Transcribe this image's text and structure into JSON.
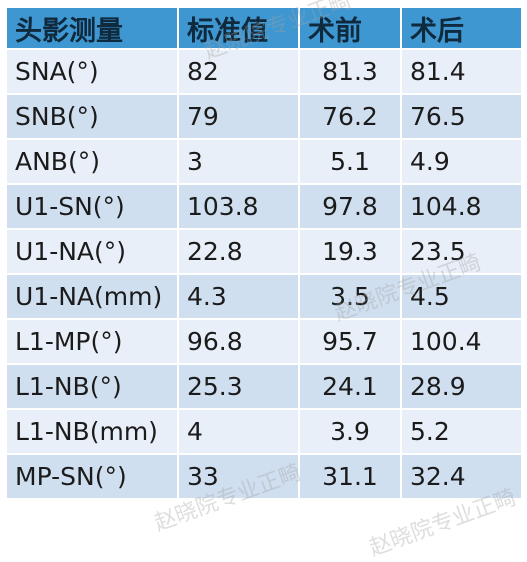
{
  "table": {
    "headers": [
      "头影测量",
      "标准值",
      "术前",
      "术后"
    ],
    "rows": [
      [
        "SNA(°)",
        "82",
        "81.3",
        "81.4"
      ],
      [
        "SNB(°)",
        "79",
        "76.2",
        "76.5"
      ],
      [
        "ANB(°)",
        "3",
        "5.1",
        "4.9"
      ],
      [
        "U1-SN(°)",
        "103.8",
        "97.8",
        "104.8"
      ],
      [
        "U1-NA(°)",
        "22.8",
        "19.3",
        "23.5"
      ],
      [
        "U1-NA(mm)",
        "4.3",
        "3.5",
        "4.5"
      ],
      [
        "L1-MP(°)",
        "96.8",
        "95.7",
        "100.4"
      ],
      [
        "L1-NB(°)",
        "25.3",
        "24.1",
        "28.9"
      ],
      [
        "L1-NB(mm)",
        "4",
        "3.9",
        "5.2"
      ],
      [
        "MP-SN(°)",
        "33",
        "31.1",
        "32.4"
      ]
    ]
  },
  "watermark": "赵晓院专业正畸",
  "colors": {
    "header_bg": "#3f97d2",
    "row_light": "#e8eff8",
    "row_dark": "#d0dff0"
  }
}
